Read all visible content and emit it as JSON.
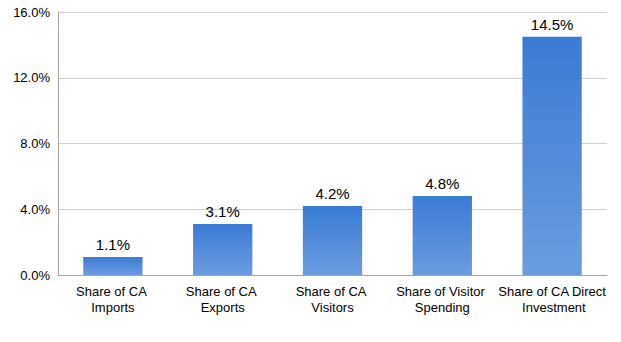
{
  "chart_data": {
    "type": "bar",
    "categories": [
      "Share of CA Imports",
      "Share of CA Exports",
      "Share of CA Visitors",
      "Share of Visitor Spending",
      "Share of CA Direct Investment"
    ],
    "values": [
      1.1,
      3.1,
      4.2,
      4.8,
      14.5
    ],
    "value_labels": [
      "1.1%",
      "3.1%",
      "4.2%",
      "4.8%",
      "14.5%"
    ],
    "color": "#3a7bd5",
    "ylim": [
      0,
      16
    ],
    "yticks": [
      {
        "value": 0,
        "label": "0.0%"
      },
      {
        "value": 4,
        "label": "4.0%"
      },
      {
        "value": 8,
        "label": "8.0%"
      },
      {
        "value": 12,
        "label": "12.0%"
      },
      {
        "value": 16,
        "label": "16.0%"
      }
    ],
    "grid": true,
    "data_labels": true
  }
}
